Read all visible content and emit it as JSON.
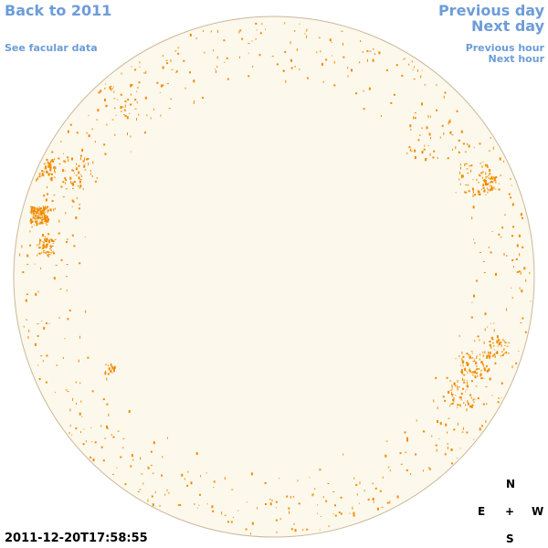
{
  "nav": {
    "back_label": "Back to 2011",
    "facular_label": "See facular data",
    "prev_day_label": "Previous day",
    "next_day_label": "Next day",
    "prev_hour_label": "Previous hour",
    "next_hour_label": "Next hour"
  },
  "compass": {
    "north": "N",
    "south": "S",
    "east": "E",
    "west": "W",
    "center": "+"
  },
  "timestamp": "2011-12-20T17:58:55",
  "colors": {
    "link": "#6d9cd8",
    "disk_fill": "#fdf8ec",
    "disk_edge": "#c9b99a",
    "facula": "#f08c00"
  }
}
